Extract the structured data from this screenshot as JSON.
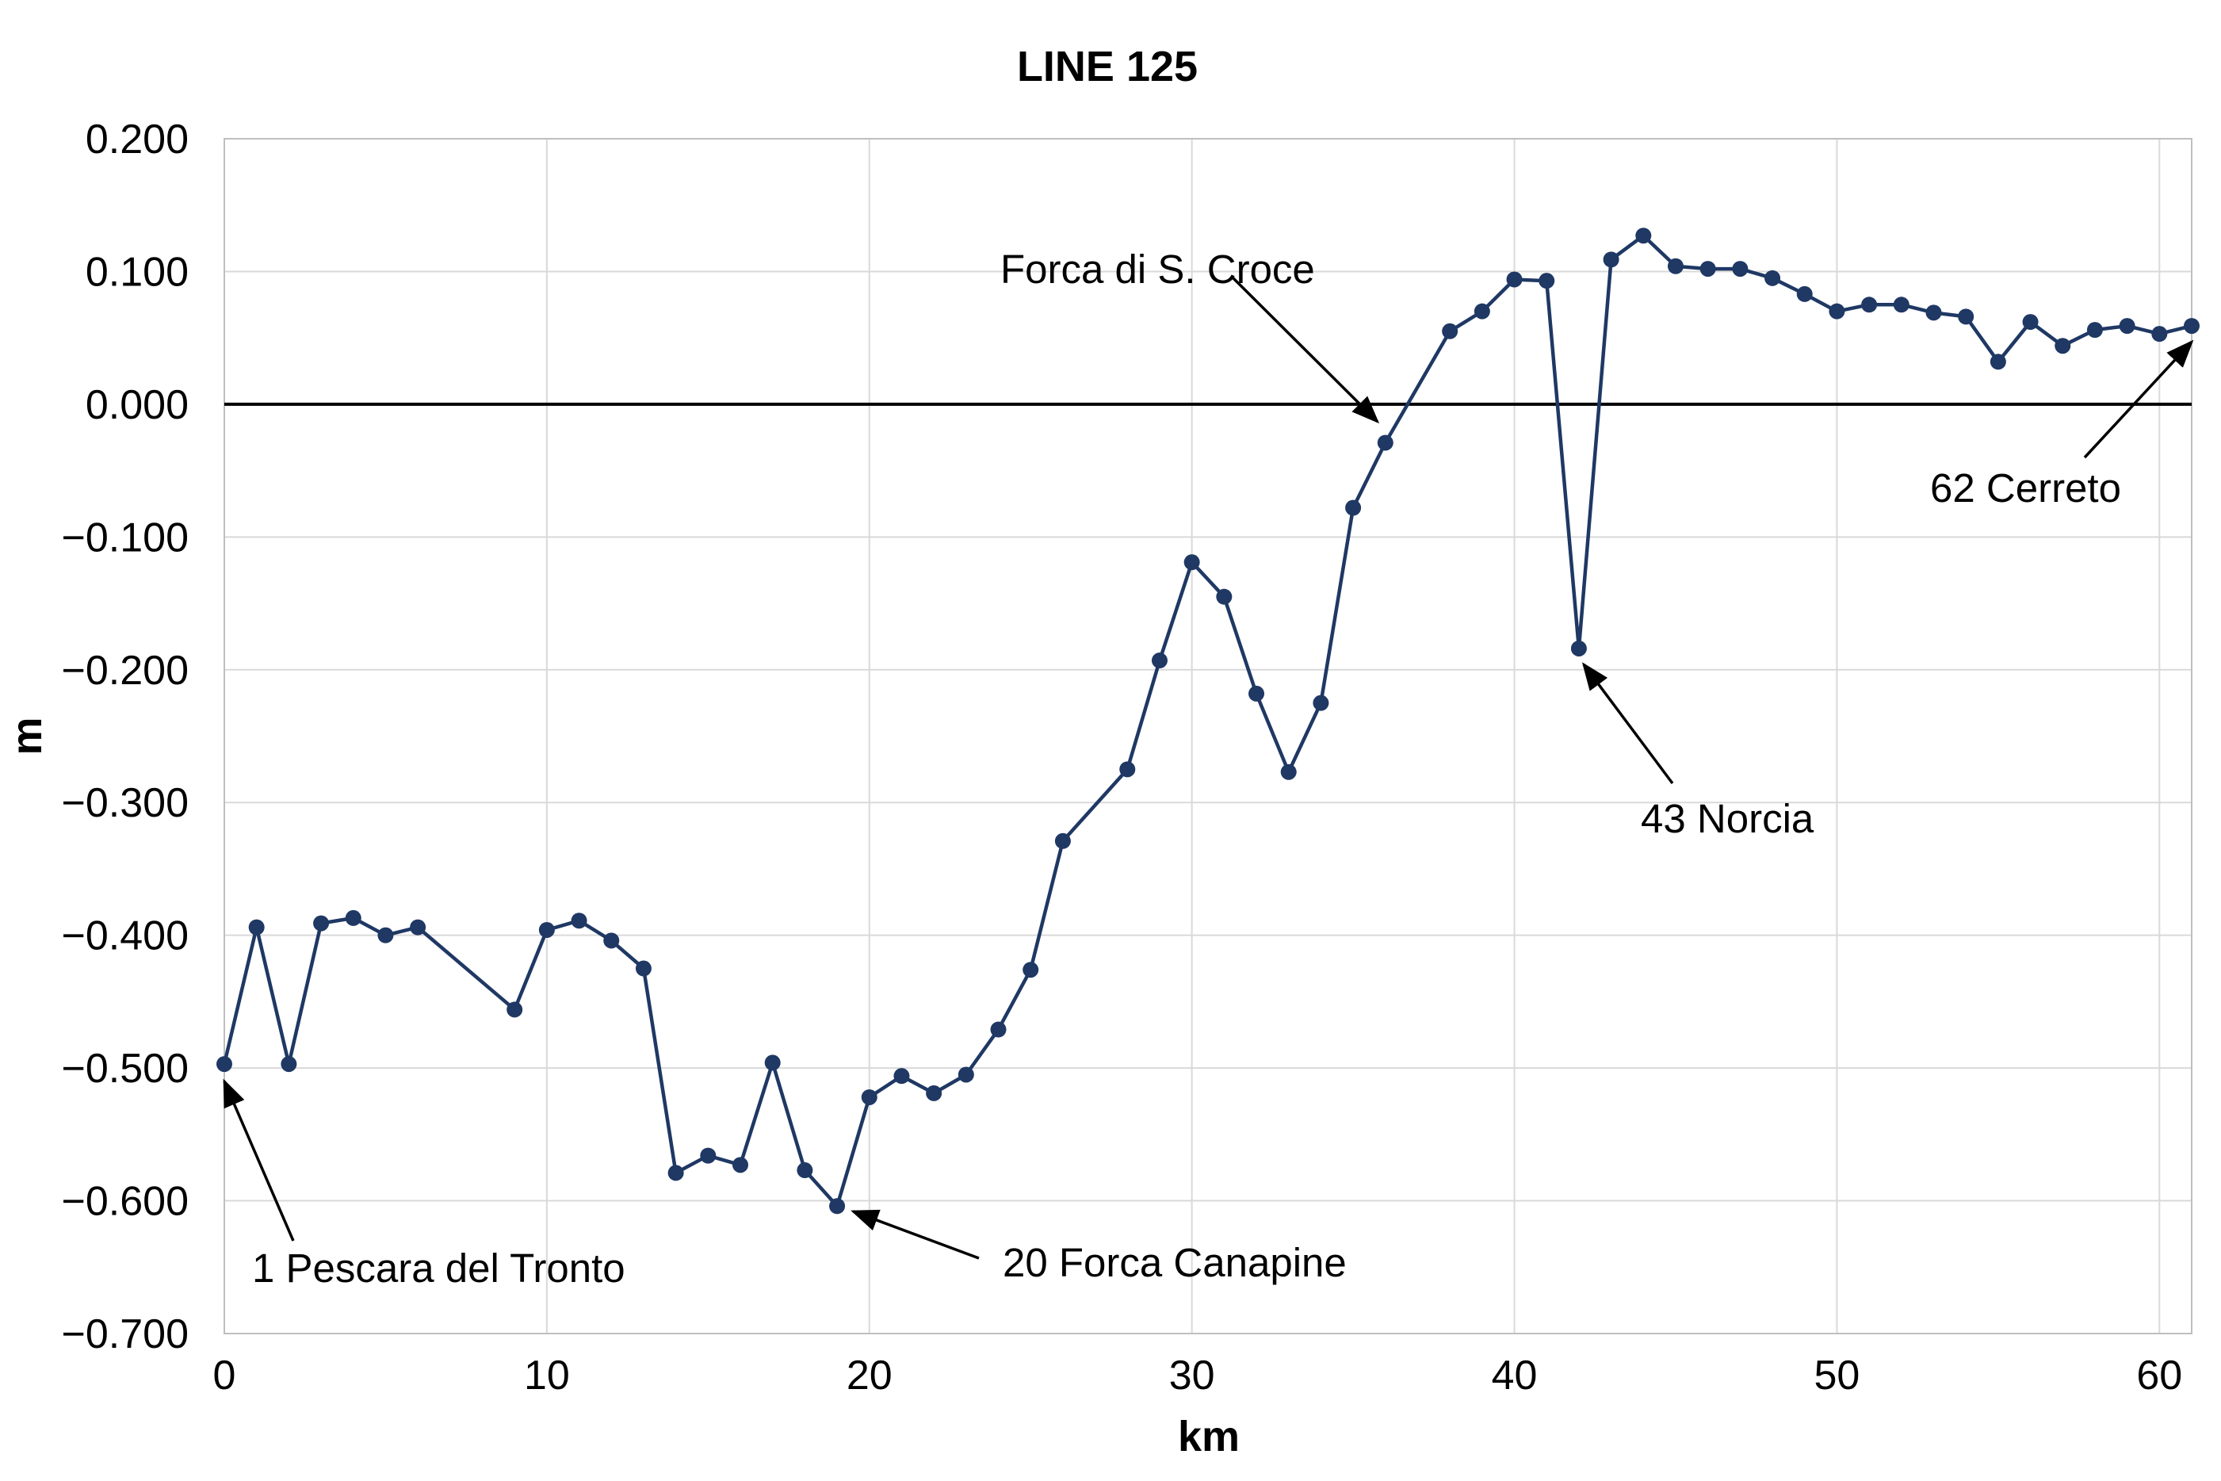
{
  "chart_data": {
    "type": "line",
    "title": "LINE  125",
    "xlabel": "km",
    "ylabel": "m",
    "xlim": [
      0,
      61
    ],
    "ylim": [
      -0.7,
      0.2
    ],
    "x_ticks": [
      0,
      10,
      20,
      30,
      40,
      50,
      60
    ],
    "x_tick_labels": [
      "0",
      "10",
      "20",
      "30",
      "40",
      "50",
      "60"
    ],
    "y_ticks": [
      0.2,
      0.1,
      0.0,
      -0.1,
      -0.2,
      -0.3,
      -0.4,
      -0.5,
      -0.6,
      -0.7
    ],
    "y_tick_labels": [
      "0.200",
      "0.100",
      "0.000",
      "−0.100",
      "−0.200",
      "−0.300",
      "−0.400",
      "−0.500",
      "−0.600",
      "−0.700"
    ],
    "grid": true,
    "zero_line": true,
    "series_color": "#1f3864",
    "series": [
      {
        "x": [
          0,
          1,
          2,
          3,
          4,
          5,
          6,
          9,
          10,
          11,
          12,
          13,
          14,
          15,
          16,
          17,
          18,
          19,
          20,
          21,
          22,
          23,
          24,
          25,
          26,
          28,
          29,
          30,
          31,
          32,
          33,
          34,
          35,
          36,
          38,
          39,
          40,
          41,
          42,
          43,
          44,
          45,
          46,
          47,
          48,
          49,
          50,
          51,
          52,
          53,
          54,
          55,
          56,
          57,
          58,
          59,
          60,
          61
        ],
        "y": [
          -0.497,
          -0.394,
          -0.497,
          -0.391,
          -0.387,
          -0.4,
          -0.394,
          -0.456,
          -0.396,
          -0.389,
          -0.404,
          -0.425,
          -0.579,
          -0.566,
          -0.573,
          -0.496,
          -0.577,
          -0.604,
          -0.522,
          -0.506,
          -0.519,
          -0.505,
          -0.471,
          -0.426,
          -0.329,
          -0.275,
          -0.193,
          -0.119,
          -0.145,
          -0.218,
          -0.277,
          -0.225,
          -0.078,
          -0.029,
          0.055,
          0.07,
          0.094,
          0.093,
          -0.184,
          0.109,
          0.127,
          0.104,
          0.102,
          0.102,
          0.095,
          0.083,
          0.07,
          0.075,
          0.075,
          0.069,
          0.066,
          0.032,
          0.062,
          0.044,
          0.056,
          0.059,
          0.053,
          0.059
        ]
      }
    ],
    "annotations": [
      {
        "text": "Forca di S. Croce",
        "target": [
          35.8,
          -0.012
        ]
      },
      {
        "text": "62 Cerreto",
        "target": [
          61,
          0.045
        ]
      },
      {
        "text": "43 Norcia",
        "target": [
          42.1,
          -0.195
        ]
      },
      {
        "text": "1 Pescara del Tronto",
        "target": [
          0,
          -0.508
        ]
      },
      {
        "text": "20 Forca Canapine",
        "target": [
          19.4,
          -0.607
        ]
      }
    ]
  }
}
